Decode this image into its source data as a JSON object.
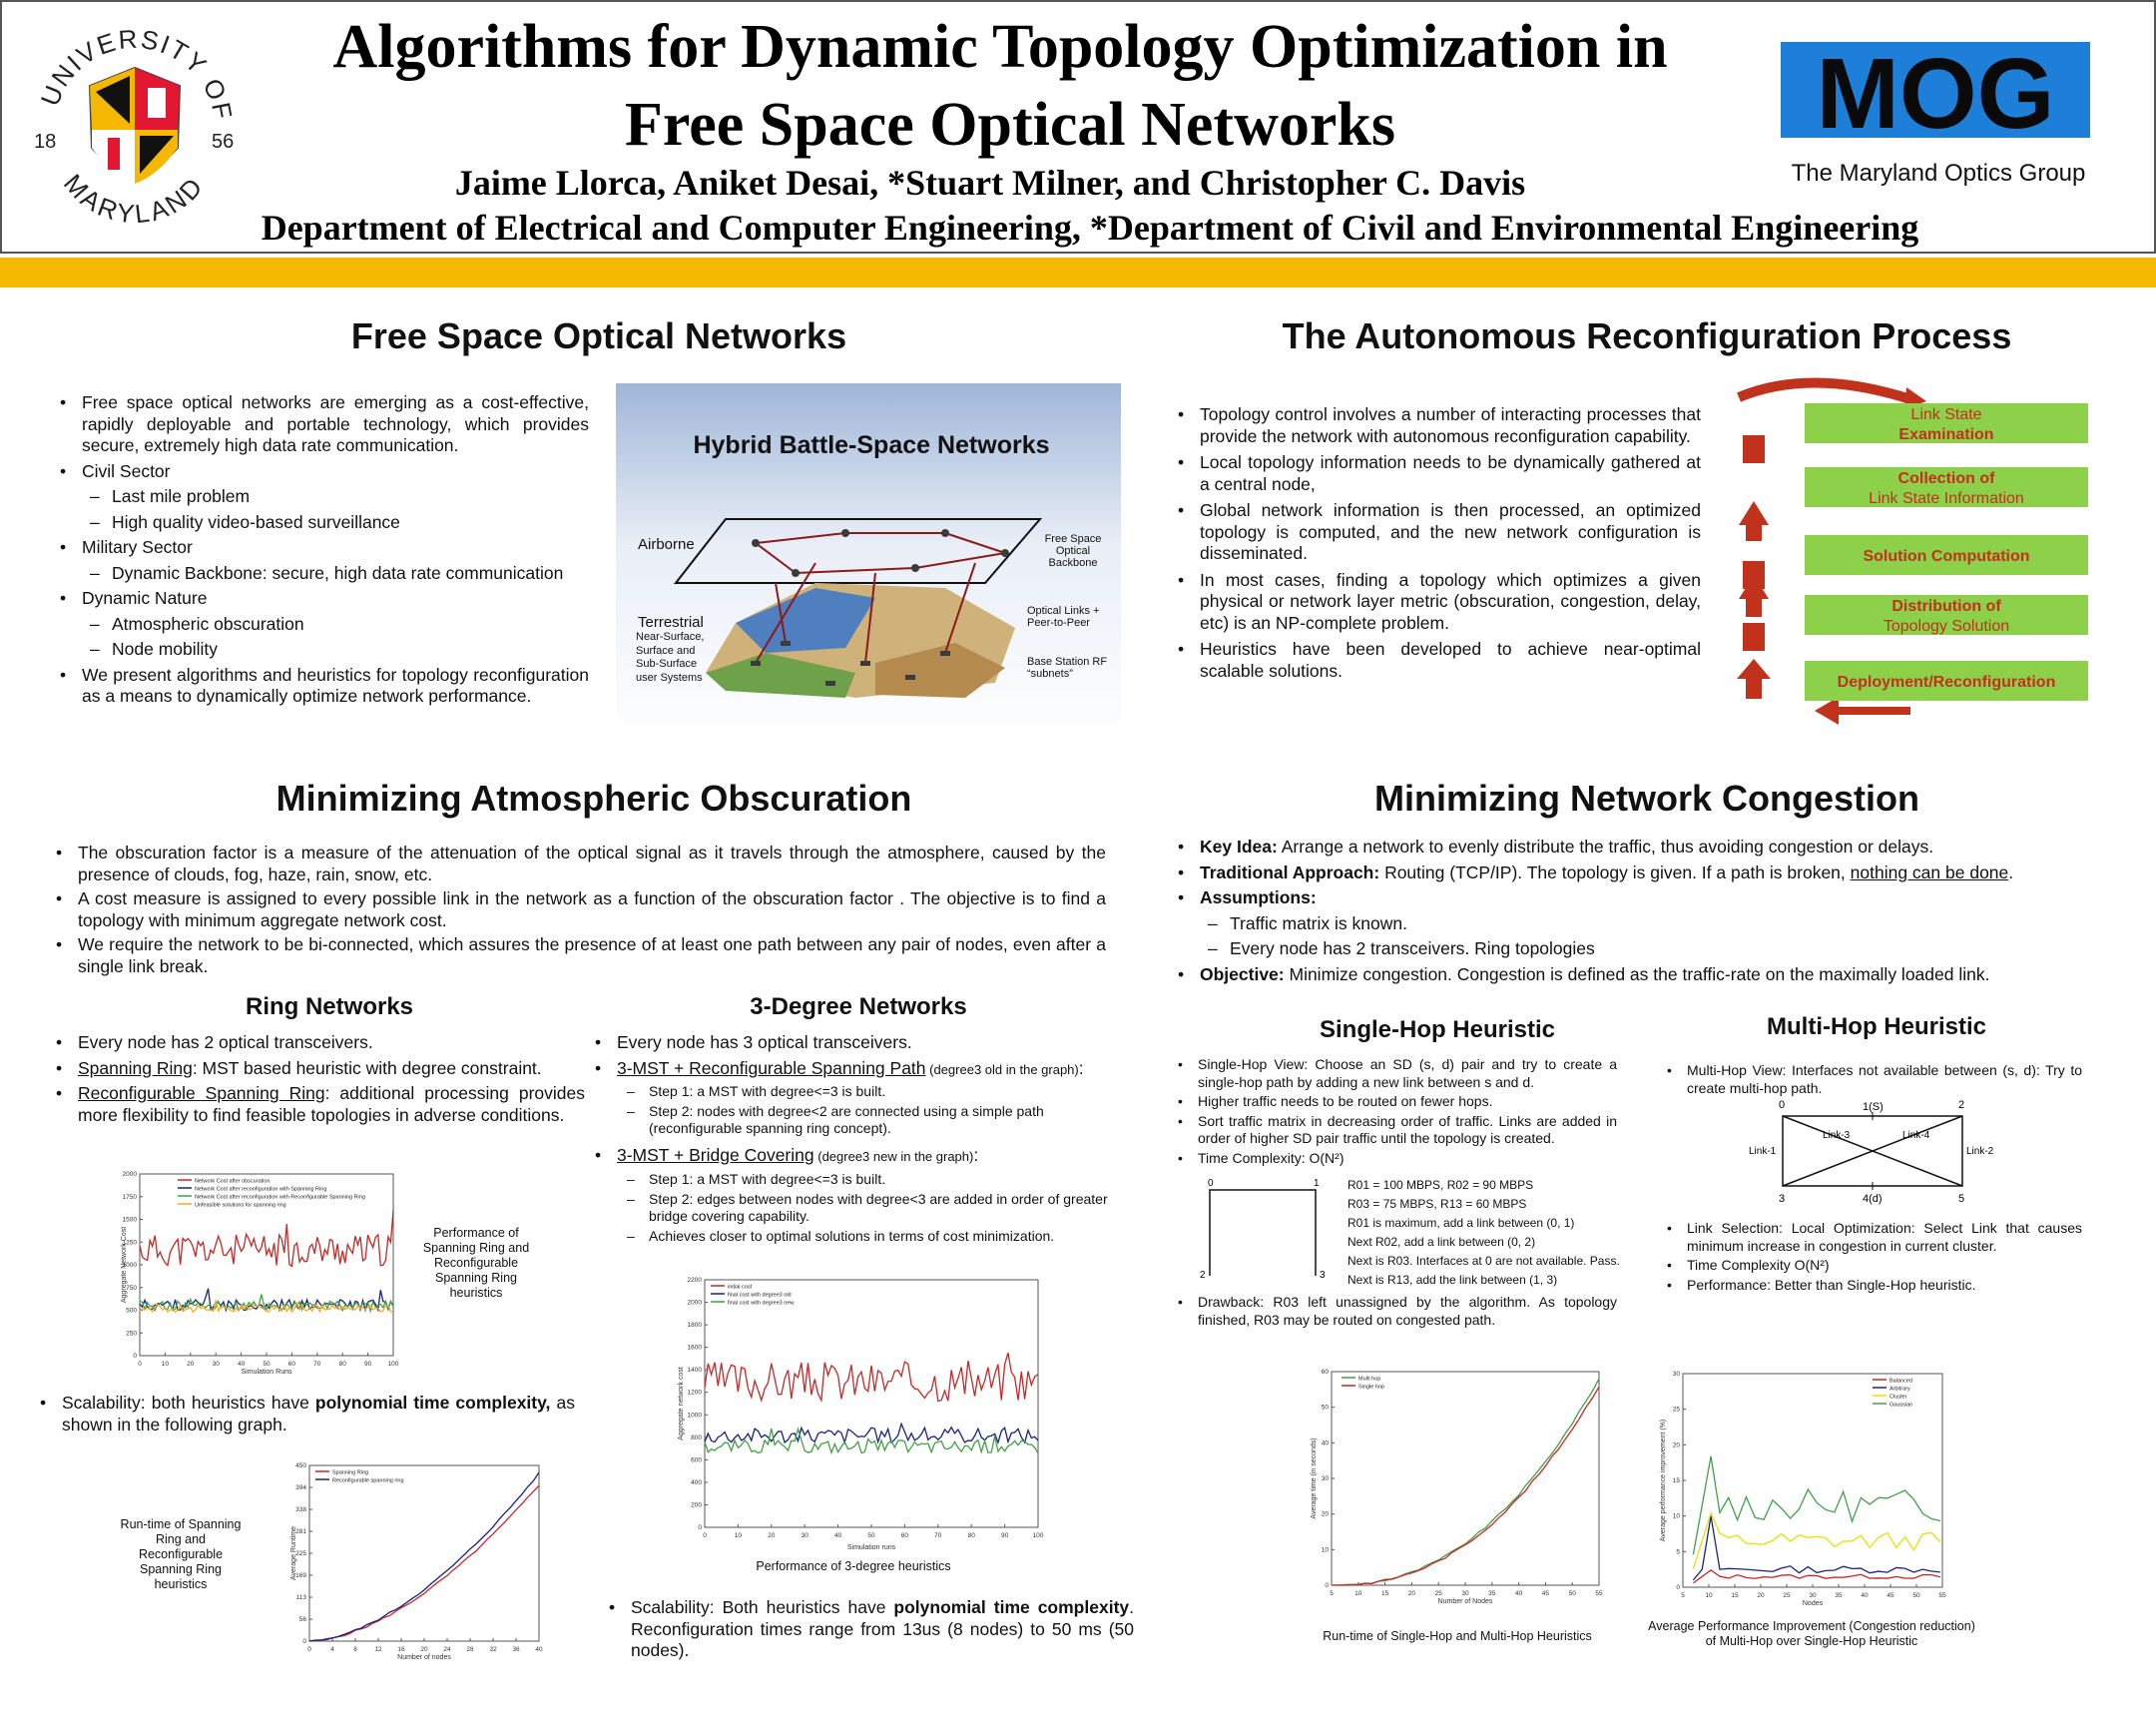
{
  "header": {
    "title_line1": "Algorithms for Dynamic Topology Optimization in",
    "title_line2": "Free Space Optical Networks",
    "authors": "Jaime Llorca, Aniket Desai, *Stuart Milner, and Christopher C. Davis",
    "departments": "Department of Electrical and Computer Engineering, *Department of Civil and Environmental Engineering",
    "umd_logo": {
      "top_text": "UNIVERSITY OF",
      "bottom_text": "MARYLAND",
      "year_left": "18",
      "year_right": "56"
    },
    "mog_logo": {
      "text": "MOG",
      "caption": "The Maryland Optics Group"
    },
    "colors": {
      "gold_bar": "#f5b800",
      "mog_blue": "#1e7fd8"
    }
  },
  "fso": {
    "title": "Free Space Optical Networks",
    "bullets": [
      "Free space optical networks are emerging as a cost-effective, rapidly deployable and portable technology, which provides secure, extremely high data rate communication.",
      "Civil Sector",
      "Last mile problem",
      "High quality video-based surveillance",
      "Military Sector",
      "Dynamic Backbone: secure, high data rate communication",
      "Dynamic Nature",
      "Atmospheric obscuration",
      "Node mobility",
      "We present algorithms and heuristics for topology reconfiguration as a means to dynamically optimize network performance."
    ],
    "figure": {
      "title": "Hybrid Battle-Space Networks",
      "airborne": "Airborne",
      "free_space": "Free Space Optical Backbone",
      "terrestrial": "Terrestrial",
      "terrestrial_sub": "Near-Surface, Surface and Sub-Surface user Systems",
      "optical_links": "Optical Links + Peer-to-Peer",
      "base_station": "Base Station RF “subnets”"
    }
  },
  "arp": {
    "title": "The Autonomous Reconfiguration Process",
    "bullets": [
      "Topology control involves a number of interacting processes that provide the network with autonomous reconfiguration capability.",
      "Local topology information needs to be dynamically gathered at a central node,",
      "Global network information is then processed, an optimized topology is computed, and the new network configuration is disseminated.",
      "In most cases, finding a topology which optimizes a given physical or network layer metric (obscuration, congestion, delay, etc) is an NP-complete problem.",
      "Heuristics have been developed to achieve near-optimal scalable solutions."
    ],
    "steps": [
      {
        "line1": "Link State",
        "line2": "Examination"
      },
      {
        "line1": "Collection of",
        "line2": "Link State Information"
      },
      {
        "line1": "Solution Computation",
        "line2": ""
      },
      {
        "line1": "Distribution of",
        "line2": "Topology Solution"
      },
      {
        "line1": "Deployment/Reconfiguration",
        "line2": ""
      }
    ],
    "colors": {
      "box": "#8dd14a",
      "arrow": "#c0321c"
    }
  },
  "mao": {
    "title": "Minimizing Atmospheric Obscuration",
    "bullets": [
      "The obscuration factor is a measure of the attenuation of the optical signal as it travels through the atmosphere, caused by the presence of clouds, fog, haze, rain, snow, etc.",
      "A cost measure is assigned to every possible link in the network as a function of the obscuration factor . The objective is to find a topology with minimum aggregate network cost.",
      "We require the network to be bi-connected, which assures the presence of at least one path between any pair of nodes, even after a single link break."
    ],
    "ring": {
      "title": "Ring Networks",
      "b1": "Every node has 2 optical transceivers.",
      "b2_u": "Spanning Ring",
      "b2": ": MST based heuristic with degree constraint.",
      "b3_u": "Reconfigurable Spanning Ring",
      "b3": ": additional processing provides more flexibility to find feasible topologies in adverse conditions.",
      "fig_caption": "Performance of Spanning Ring and Reconfigurable Spanning Ring heuristics",
      "scal_a": "Scalability: both heuristics have ",
      "scal_b": "polynomial time complexity,",
      "scal_c": " as shown in the following graph.",
      "runtime_caption": "Run-time of Spanning Ring and Reconfigurable Spanning Ring heuristics"
    },
    "deg3": {
      "title": "3-Degree Networks",
      "b1": "Every node has 3 optical transceivers.",
      "b2_u": "3-MST + Reconfigurable Spanning Path",
      "b2_note": " (degree3 old in the graph)",
      "b2_end": ":",
      "s1": "Step 1: a MST with degree<=3 is built.",
      "s2": "Step 2: nodes with degree<2 are connected using a simple path (reconfigurable spanning ring concept).",
      "b3_u": "3-MST + Bridge Covering",
      "b3_note": " (degree3 new in the graph)",
      "b3_end": ":",
      "s3": "Step 1: a MST with degree<=3 is built.",
      "s4": "Step 2: edges between nodes with degree<3 are added in order of greater bridge covering capability.",
      "s5": "Achieves closer to optimal solutions in terms of cost minimization.",
      "fig_caption": "Performance of 3-degree heuristics",
      "scal_a": "Scalability: Both heuristics have ",
      "scal_b": "polynomial time complexity",
      "scal_c": ". Reconfiguration times range from 13us (8 nodes) to 50 ms (50 nodes)."
    }
  },
  "mnc": {
    "title": "Minimizing Network Congestion",
    "key_a": "Key Idea:",
    "key_b": " Arrange a network to evenly distribute the traffic, thus avoiding congestion or delays.",
    "trad_a": "Traditional Approach:",
    "trad_b": " Routing (TCP/IP). The topology is given. If a path is broken, ",
    "trad_c": "nothing can be done",
    "trad_d": ".",
    "assump": "Assumptions:",
    "assump_1": "Traffic matrix is known.",
    "assump_2": "Every node has 2 transceivers. Ring topologies",
    "obj_a": "Objective:",
    "obj_b": " Minimize congestion. Congestion is defined as the traffic-rate on the maximally loaded link.",
    "single": {
      "title": "Single-Hop Heuristic",
      "b1": "Single-Hop View: Choose an SD (s, d) pair and try to create a single-hop path by adding a new link between s and d.",
      "b2": "Higher traffic needs to be routed on fewer hops.",
      "b3": "Sort traffic matrix in decreasing order of traffic. Links are added in order of higher SD pair traffic until the topology is created.",
      "b4": "Time Complexity: O(N²)",
      "r1": "R01 = 100 MBPS, R02 = 90 MBPS",
      "r2": "R03 = 75 MBPS, R13 = 60 MBPS",
      "r3": "R01 is maximum, add a link between (0, 1)",
      "r4": "Next R02, add a link between (0, 2)",
      "r5": "Next is R03. Interfaces at 0 are not available. Pass.",
      "r6": "Next is R13, add the link between (1, 3)",
      "b5": "Drawback: R03 left unassigned by the algorithm. As topology finished, R03 may be routed on congested path.",
      "fig_caption": "Run-time of Single-Hop and Multi-Hop Heuristics"
    },
    "multi": {
      "title": "Multi-Hop Heuristic",
      "b1": "Multi-Hop View: Interfaces not available between (s, d): Try to create multi-hop path.",
      "b2": "Link Selection: Local Optimization: Select Link that causes minimum increase in congestion in current cluster.",
      "b3": "Time Complexity O(N²)",
      "b4": "Performance: Better than Single-Hop heuristic.",
      "diag": {
        "n0": "0",
        "n1": "1(S)",
        "n2": "2",
        "n3": "3",
        "n4": "4(d)",
        "n5": "5",
        "l1": "Link-1",
        "l2": "Link-2",
        "l3": "Link-3",
        "l4": "Link-4"
      },
      "fig_caption": "Average Performance Improvement (Congestion reduction) of Multi-Hop over Single-Hop Heuristic"
    }
  },
  "chart_data": [
    {
      "type": "line",
      "id": "ring-performance",
      "xlabel": "Simulation Runs",
      "ylabel": "Aggregate Network Cost",
      "xlim": [
        0,
        100
      ],
      "ylim": [
        0,
        2000
      ],
      "legend": "top",
      "series": [
        {
          "name": "Network Cost after obscuration",
          "color": "#c62828",
          "level": 1160,
          "noise": 180
        },
        {
          "name": "Network Cost after reconfiguration with Spanning Ring",
          "color": "#1a237e",
          "level": 560,
          "noise": 60
        },
        {
          "name": "Network Cost after reconfiguration with Reconfigurable Spanning Ring",
          "color": "#43a047",
          "level": 545,
          "noise": 55
        },
        {
          "name": "Unfeasible solutions for spanning ring",
          "color": "#f9a825",
          "level": 520,
          "noise": 40
        }
      ]
    },
    {
      "type": "line",
      "id": "ring-runtime",
      "xlabel": "Number of nodes",
      "ylabel": "Average Runtime",
      "xlim": [
        0,
        40
      ],
      "ylim": [
        0,
        450
      ],
      "legend": "top-left",
      "series": [
        {
          "name": "Spanning Ring",
          "color": "#c62828",
          "end": 400
        },
        {
          "name": "Reconfigurable spanning ring",
          "color": "#1a237e",
          "end": 430
        }
      ]
    },
    {
      "type": "line",
      "id": "deg3-performance",
      "xlabel": "Simulation runs",
      "ylabel": "Aggregate network cost",
      "xlim": [
        0,
        100
      ],
      "ylim": [
        0,
        2200
      ],
      "legend": "top-left",
      "series": [
        {
          "name": "initial cost",
          "color": "#c62828",
          "level": 1300,
          "noise": 180
        },
        {
          "name": "final cost with degree3 old",
          "color": "#1a237e",
          "level": 820,
          "noise": 70
        },
        {
          "name": "final cost with degree3 new",
          "color": "#43a047",
          "level": 720,
          "noise": 60
        }
      ]
    },
    {
      "type": "line",
      "id": "hop-runtime",
      "xlabel": "Number of Nodes",
      "ylabel": "Average time (in seconds)",
      "xlim": [
        5,
        55
      ],
      "ylim": [
        0,
        60
      ],
      "legend": "top-left",
      "series": [
        {
          "name": "Multi hop",
          "color": "#43a047",
          "end": 58
        },
        {
          "name": "Single hop",
          "color": "#c62828",
          "end": 56
        }
      ]
    },
    {
      "type": "line",
      "id": "hop-improvement",
      "xlabel": "Nodes",
      "ylabel": "Average performance improvement (%)",
      "xlim": [
        5,
        55
      ],
      "ylim": [
        0,
        30
      ],
      "legend": "top-right",
      "series": [
        {
          "name": "Balanced",
          "color": "#c62828",
          "level": 1.5
        },
        {
          "name": "Arbitrary",
          "color": "#1a237e",
          "level": 2.5
        },
        {
          "name": "Cluster",
          "color": "#e8e000",
          "level": 6.5
        },
        {
          "name": "Gaussian",
          "color": "#43a047",
          "level": 11.5
        }
      ]
    }
  ]
}
